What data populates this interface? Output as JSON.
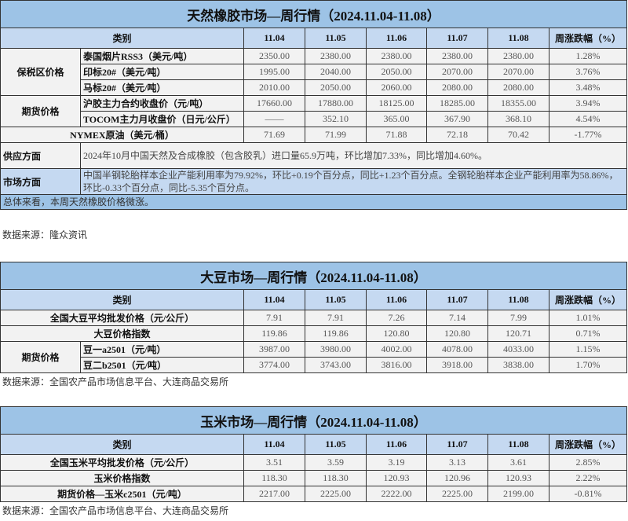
{
  "tables": [
    {
      "title": "天然橡胶市场—周行情（2024.11.04-11.08）",
      "header": {
        "category": "类别",
        "dates": [
          "11.04",
          "11.05",
          "11.06",
          "11.07",
          "11.08"
        ],
        "change": "周涨跌幅（%）"
      },
      "groups": [
        {
          "group": "保税区价格",
          "items": [
            {
              "label": "泰国烟片RSS3（美元/吨）",
              "values": [
                "2350.00",
                "2380.00",
                "2380.00",
                "2380.00",
                "2380.00"
              ],
              "change": "1.28%"
            },
            {
              "label": "印标20#（美元/吨）",
              "values": [
                "1995.00",
                "2040.00",
                "2050.00",
                "2070.00",
                "2070.00"
              ],
              "change": "3.76%"
            },
            {
              "label": "马标20#（美元/吨）",
              "values": [
                "2010.00",
                "2050.00",
                "2060.00",
                "2080.00",
                "2080.00"
              ],
              "change": "3.48%"
            }
          ]
        },
        {
          "group": "期货价格",
          "items": [
            {
              "label": "沪胶主力合约收盘价（元/吨）",
              "values": [
                "17660.00",
                "17880.00",
                "18125.00",
                "18285.00",
                "18355.00"
              ],
              "change": "3.94%"
            },
            {
              "label": "TOCOM主力月收盘价（日元/公斤）",
              "values": [
                "——",
                "352.10",
                "365.00",
                "367.90",
                "368.10"
              ],
              "change": "4.54%"
            }
          ]
        },
        {
          "group": "",
          "items": [
            {
              "label": "NYMEX原油（美元/桶）",
              "values": [
                "71.69",
                "71.99",
                "71.88",
                "72.18",
                "70.42"
              ],
              "change": "-1.77%"
            }
          ]
        }
      ],
      "notes": [
        {
          "label": "供应方面",
          "text": "2024年10月中国天然及合成橡胶（包含胶乳）进口量65.9万吨，环比增加7.33%，同比增加4.60%。",
          "bg": "#f2f2f2"
        },
        {
          "label": "市场方面",
          "text": "中国半钢轮胎样本企业产能利用率为79.92%，环比+0.19个百分点，同比+1.23个百分点。全钢轮胎样本企业产能利用率为58.86%，环比-0.33个百分点，同比-5.35个百分点。",
          "bg": "#c5d9f1"
        }
      ],
      "summary": "总体来看，本周天然橡胶价格微涨。",
      "source": "数据来源：隆众资讯"
    },
    {
      "title": "大豆市场—周行情（2024.11.04-11.08）",
      "header": {
        "category": "类别",
        "dates": [
          "11.04",
          "11.05",
          "11.06",
          "11.07",
          "11.08"
        ],
        "change": "周涨跌幅（%）"
      },
      "groups": [
        {
          "group": "",
          "items": [
            {
              "label": "全国大豆平均批发价格（元/公斤）",
              "values": [
                "7.91",
                "7.91",
                "7.26",
                "7.14",
                "7.99"
              ],
              "change": "1.01%"
            }
          ]
        },
        {
          "group": "",
          "items": [
            {
              "label": "大豆价格指数",
              "values": [
                "119.86",
                "119.86",
                "120.80",
                "120.80",
                "120.71"
              ],
              "change": "0.71%"
            }
          ]
        },
        {
          "group": "期货价格",
          "items": [
            {
              "label": "豆一a2501（元/吨）",
              "values": [
                "3987.00",
                "3980.00",
                "4002.00",
                "4078.00",
                "4033.00"
              ],
              "change": "1.15%"
            },
            {
              "label": "豆二b2501（元/吨）",
              "values": [
                "3774.00",
                "3743.00",
                "3816.00",
                "3918.00",
                "3838.00"
              ],
              "change": "1.70%"
            }
          ]
        }
      ],
      "source": "数据来源：全国农产品市场信息平台、大连商品交易所"
    },
    {
      "title": "玉米市场—周行情（2024.11.04-11.08）",
      "header": {
        "category": "类别",
        "dates": [
          "11.04",
          "11.05",
          "11.06",
          "11.07",
          "11.08"
        ],
        "change": "周涨跌幅（%）"
      },
      "groups": [
        {
          "group": "",
          "items": [
            {
              "label": "全国玉米平均批发价格（元/公斤）",
              "values": [
                "3.51",
                "3.59",
                "3.19",
                "3.13",
                "3.61"
              ],
              "change": "2.85%"
            }
          ]
        },
        {
          "group": "",
          "items": [
            {
              "label": "玉米价格指数",
              "values": [
                "118.30",
                "118.30",
                "120.93",
                "120.96",
                "120.93"
              ],
              "change": "2.22%"
            }
          ]
        },
        {
          "group": "",
          "items": [
            {
              "label": "期货价格—玉米c2501（元/吨）",
              "values": [
                "2217.00",
                "2225.00",
                "2222.00",
                "2225.00",
                "2199.00"
              ],
              "change": "-0.81%"
            }
          ]
        }
      ],
      "source": "数据来源：全国农产品市场信息平台、大连商品交易所"
    }
  ]
}
